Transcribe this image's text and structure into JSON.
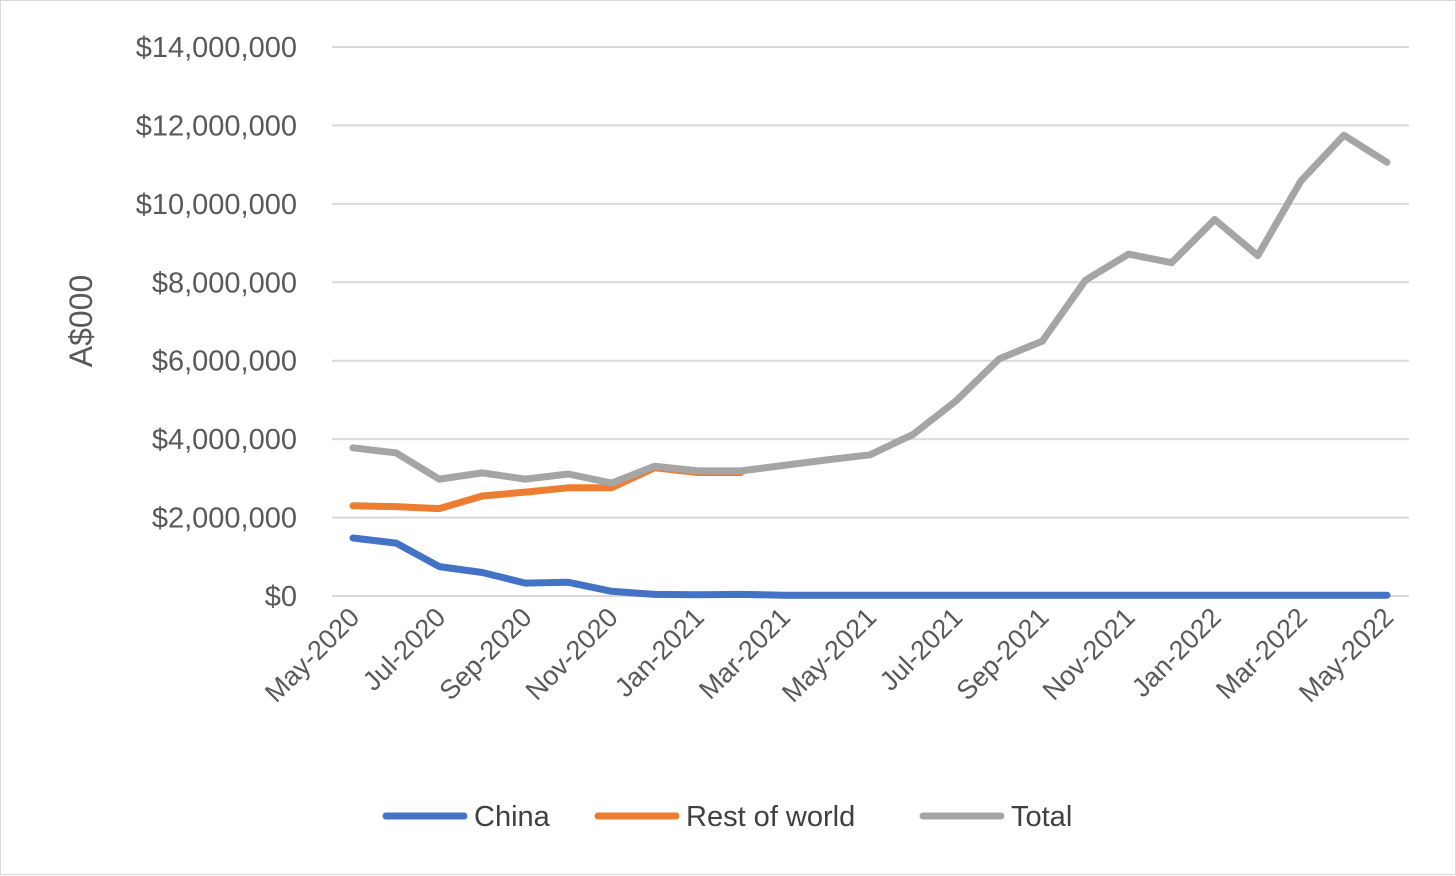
{
  "chart_data": {
    "type": "line",
    "title": "",
    "ylabel": "A$000",
    "xlabel": "",
    "ylim": [
      0,
      14000000
    ],
    "ytick_values": [
      0,
      2000000,
      4000000,
      6000000,
      8000000,
      10000000,
      12000000,
      14000000
    ],
    "ytick_labels": [
      "$0",
      "$2,000,000",
      "$4,000,000",
      "$6,000,000",
      "$8,000,000",
      "$10,000,000",
      "$12,000,000",
      "$14,000,000"
    ],
    "grid": "horizontal",
    "legend": "bottom",
    "x": [
      "May-2020",
      "Jun-2020",
      "Jul-2020",
      "Aug-2020",
      "Sep-2020",
      "Oct-2020",
      "Nov-2020",
      "Dec-2020",
      "Jan-2021",
      "Feb-2021",
      "Mar-2021",
      "Apr-2021",
      "May-2021",
      "Jun-2021",
      "Jul-2021",
      "Aug-2021",
      "Sep-2021",
      "Oct-2021",
      "Nov-2021",
      "Dec-2021",
      "Jan-2022",
      "Feb-2022",
      "Mar-2022",
      "Apr-2022",
      "May-2022"
    ],
    "xtick_labels": [
      "May-2020",
      "Jul-2020",
      "Sep-2020",
      "Nov-2020",
      "Jan-2021",
      "Mar-2021",
      "May-2021",
      "Jul-2021",
      "Sep-2021",
      "Nov-2021",
      "Jan-2022",
      "Mar-2022",
      "May-2022"
    ],
    "series": [
      {
        "name": "China",
        "color": "#4472c4",
        "values": [
          1480000,
          1350000,
          750000,
          600000,
          330000,
          350000,
          120000,
          40000,
          30000,
          40000,
          20000,
          20000,
          20000,
          20000,
          20000,
          20000,
          20000,
          20000,
          20000,
          20000,
          20000,
          20000,
          20000,
          20000,
          20000
        ]
      },
      {
        "name": "Rest of world",
        "color": "#ed7d31",
        "values": [
          2300000,
          2280000,
          2230000,
          2550000,
          2650000,
          2760000,
          2760000,
          3270000,
          3150000,
          3150000,
          null,
          null,
          null,
          null,
          null,
          null,
          null,
          null,
          null,
          null,
          null,
          null,
          null,
          null,
          null
        ]
      },
      {
        "name": "Total",
        "color": "#a5a5a5",
        "values": [
          3780000,
          3650000,
          2980000,
          3140000,
          2980000,
          3110000,
          2880000,
          3310000,
          3190000,
          3190000,
          3330000,
          3470000,
          3600000,
          4120000,
          4980000,
          6050000,
          6500000,
          8050000,
          8720000,
          8500000,
          9600000,
          8680000,
          10580000,
          11750000,
          11060000
        ]
      }
    ]
  }
}
